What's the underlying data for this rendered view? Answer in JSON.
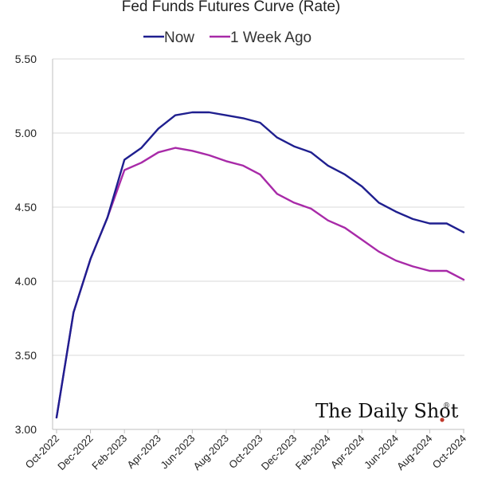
{
  "colors": {
    "now": "#1f1f8f",
    "week_ago": "#a82aa8",
    "watermark_dot": "#c0392b"
  },
  "watermark": {
    "text": "The Daily Shot",
    "mark": "®"
  },
  "chart_data": {
    "type": "line",
    "title": "Fed Funds Futures Curve (Rate)",
    "xlabel": "",
    "ylabel": "",
    "ylim": [
      3.0,
      5.5
    ],
    "yticks": [
      "3.00",
      "3.50",
      "4.00",
      "4.50",
      "5.00",
      "5.50"
    ],
    "grid": true,
    "legend": "top-center",
    "x": [
      "Oct-2022",
      "Nov-2022",
      "Dec-2022",
      "Jan-2023",
      "Feb-2023",
      "Mar-2023",
      "Apr-2023",
      "May-2023",
      "Jun-2023",
      "Jul-2023",
      "Aug-2023",
      "Sep-2023",
      "Oct-2023",
      "Nov-2023",
      "Dec-2023",
      "Jan-2024",
      "Feb-2024",
      "Mar-2024",
      "Apr-2024",
      "May-2024",
      "Jun-2024",
      "Jul-2024",
      "Aug-2024",
      "Sep-2024",
      "Oct-2024"
    ],
    "x_tick_labels": [
      "Oct-2022",
      "Dec-2022",
      "Feb-2023",
      "Apr-2023",
      "Jun-2023",
      "Aug-2023",
      "Oct-2023",
      "Dec-2023",
      "Feb-2024",
      "Apr-2024",
      "Jun-2024",
      "Aug-2024",
      "Oct-2024"
    ],
    "series": [
      {
        "name": "Now",
        "values": [
          3.08,
          3.79,
          4.15,
          4.43,
          4.82,
          4.9,
          5.03,
          5.12,
          5.14,
          5.14,
          5.12,
          5.1,
          5.07,
          4.97,
          4.91,
          4.87,
          4.78,
          4.72,
          4.64,
          4.53,
          4.47,
          4.42,
          4.39,
          4.39,
          4.33
        ]
      },
      {
        "name": "1 Week Ago",
        "values": [
          3.08,
          3.79,
          4.15,
          4.43,
          4.75,
          4.8,
          4.87,
          4.9,
          4.88,
          4.85,
          4.81,
          4.78,
          4.72,
          4.59,
          4.53,
          4.49,
          4.41,
          4.36,
          4.28,
          4.2,
          4.14,
          4.1,
          4.07,
          4.07,
          4.01
        ]
      }
    ]
  }
}
